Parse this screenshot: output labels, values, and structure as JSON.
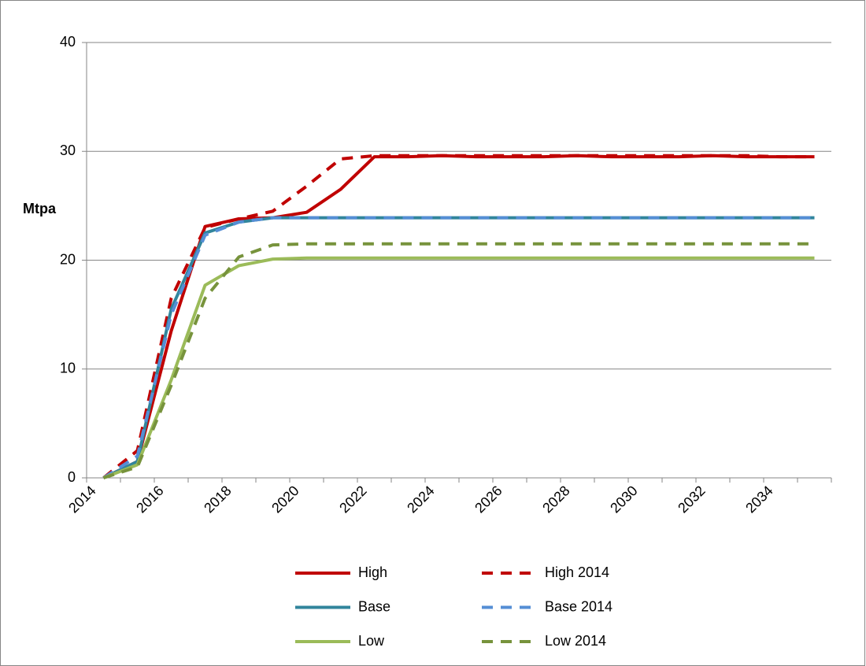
{
  "chart_data": {
    "type": "line",
    "y_label": "Mtpa",
    "categories": [
      "2014",
      null,
      "2016",
      null,
      "2018",
      null,
      "2020",
      null,
      "2022",
      null,
      "2024",
      null,
      "2026",
      null,
      "2028",
      null,
      "2030",
      null,
      "2032",
      null,
      "2034",
      null
    ],
    "ylim": [
      0,
      40
    ],
    "yticks": [
      0,
      10,
      20,
      30,
      40
    ],
    "grid": true,
    "legend": "bottom",
    "series": [
      {
        "name": "High",
        "color": "#c00000",
        "dashed": false,
        "values": [
          0,
          1.5,
          13.5,
          23.1,
          23.8,
          23.9,
          24.4,
          26.5,
          29.5,
          29.5,
          29.6,
          29.5,
          29.5,
          29.5,
          29.6,
          29.5,
          29.5,
          29.5,
          29.6,
          29.5,
          29.5,
          29.5
        ]
      },
      {
        "name": "High 2014",
        "color": "#c00000",
        "dashed": true,
        "values": [
          0,
          2.5,
          16.5,
          23,
          23.8,
          24.5,
          26.8,
          29.3,
          29.6,
          29.6,
          29.6,
          29.6,
          29.6,
          29.6,
          29.6,
          29.6,
          29.6,
          29.6,
          29.6,
          29.6,
          29.5,
          29.5
        ]
      },
      {
        "name": "Base",
        "color": "#31859c",
        "dashed": false,
        "values": [
          0,
          1.5,
          15.5,
          22.5,
          23.5,
          23.9,
          23.9,
          23.9,
          23.9,
          23.9,
          23.9,
          23.9,
          23.9,
          23.9,
          23.9,
          23.9,
          23.9,
          23.9,
          23.9,
          23.9,
          23.9,
          23.9
        ]
      },
      {
        "name": "Base 2014",
        "color": "#558ed5",
        "dashed": true,
        "values": [
          0,
          2,
          15,
          22.3,
          23.5,
          23.9,
          23.9,
          23.9,
          23.9,
          23.9,
          23.9,
          23.9,
          23.9,
          23.9,
          23.9,
          23.9,
          23.9,
          23.9,
          23.9,
          23.9,
          23.9,
          23.9
        ]
      },
      {
        "name": "Low",
        "color": "#9bbb59",
        "dashed": false,
        "values": [
          0,
          1.2,
          9,
          17.7,
          19.5,
          20.1,
          20.2,
          20.2,
          20.2,
          20.2,
          20.2,
          20.2,
          20.2,
          20.2,
          20.2,
          20.2,
          20.2,
          20.2,
          20.2,
          20.2,
          20.2,
          20.2
        ]
      },
      {
        "name": "Low 2014",
        "color": "#77933c",
        "dashed": true,
        "values": [
          0,
          1,
          8.5,
          16.5,
          20.3,
          21.4,
          21.5,
          21.5,
          21.5,
          21.5,
          21.5,
          21.5,
          21.5,
          21.5,
          21.5,
          21.5,
          21.5,
          21.5,
          21.5,
          21.5,
          21.5,
          21.5
        ]
      }
    ]
  }
}
